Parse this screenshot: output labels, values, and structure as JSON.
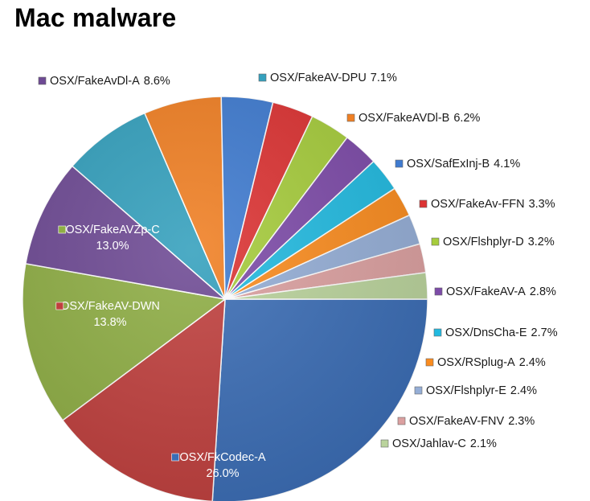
{
  "title": "Mac malware",
  "chart_data": {
    "type": "pie",
    "title": "Mac malware",
    "legend": "data labels placed around the pie",
    "slices": [
      {
        "name": "OSX/FkCodec-A",
        "value": 26.0,
        "label": "26.0%",
        "color": "#3B6DB5"
      },
      {
        "name": "OSX/FakeAV-DWN",
        "value": 13.8,
        "label": "13.8%",
        "color": "#C0403E"
      },
      {
        "name": "OSX/FakeAVZp-C",
        "value": 13.0,
        "label": "13.0%",
        "color": "#8FAE45"
      },
      {
        "name": "OSX/FakeAvDl-A",
        "value": 8.6,
        "label": "8.6%",
        "color": "#6E4A94"
      },
      {
        "name": "OSX/FakeAV-DPU",
        "value": 7.1,
        "label": "7.1%",
        "color": "#34A0BD"
      },
      {
        "name": "OSX/FakeAVDl-B",
        "value": 6.2,
        "label": "6.2%",
        "color": "#F07F23"
      },
      {
        "name": "OSX/SafExInj-B",
        "value": 4.1,
        "label": "4.1%",
        "color": "#3F7BD0"
      },
      {
        "name": "OSX/FakeAv-FFN",
        "value": 3.3,
        "label": "3.3%",
        "color": "#DC3333"
      },
      {
        "name": "OSX/Flshplyr-D",
        "value": 3.2,
        "label": "3.2%",
        "color": "#A6CC3C"
      },
      {
        "name": "OSX/FakeAV-A",
        "value": 2.8,
        "label": "2.8%",
        "color": "#7D4BA8"
      },
      {
        "name": "OSX/DnsCha-E",
        "value": 2.7,
        "label": "2.7%",
        "color": "#22BAE0"
      },
      {
        "name": "OSX/RSplug-A",
        "value": 2.4,
        "label": "2.4%",
        "color": "#FA8C1F"
      },
      {
        "name": "OSX/Flshplyr-E",
        "value": 2.4,
        "label": "2.4%",
        "color": "#95AED6"
      },
      {
        "name": "OSX/FakeAV-FNV",
        "value": 2.3,
        "label": "2.3%",
        "color": "#DBA0A0"
      },
      {
        "name": "OSX/Jahlav-C",
        "value": 2.1,
        "label": "2.1%",
        "color": "#BAD39C"
      }
    ]
  }
}
